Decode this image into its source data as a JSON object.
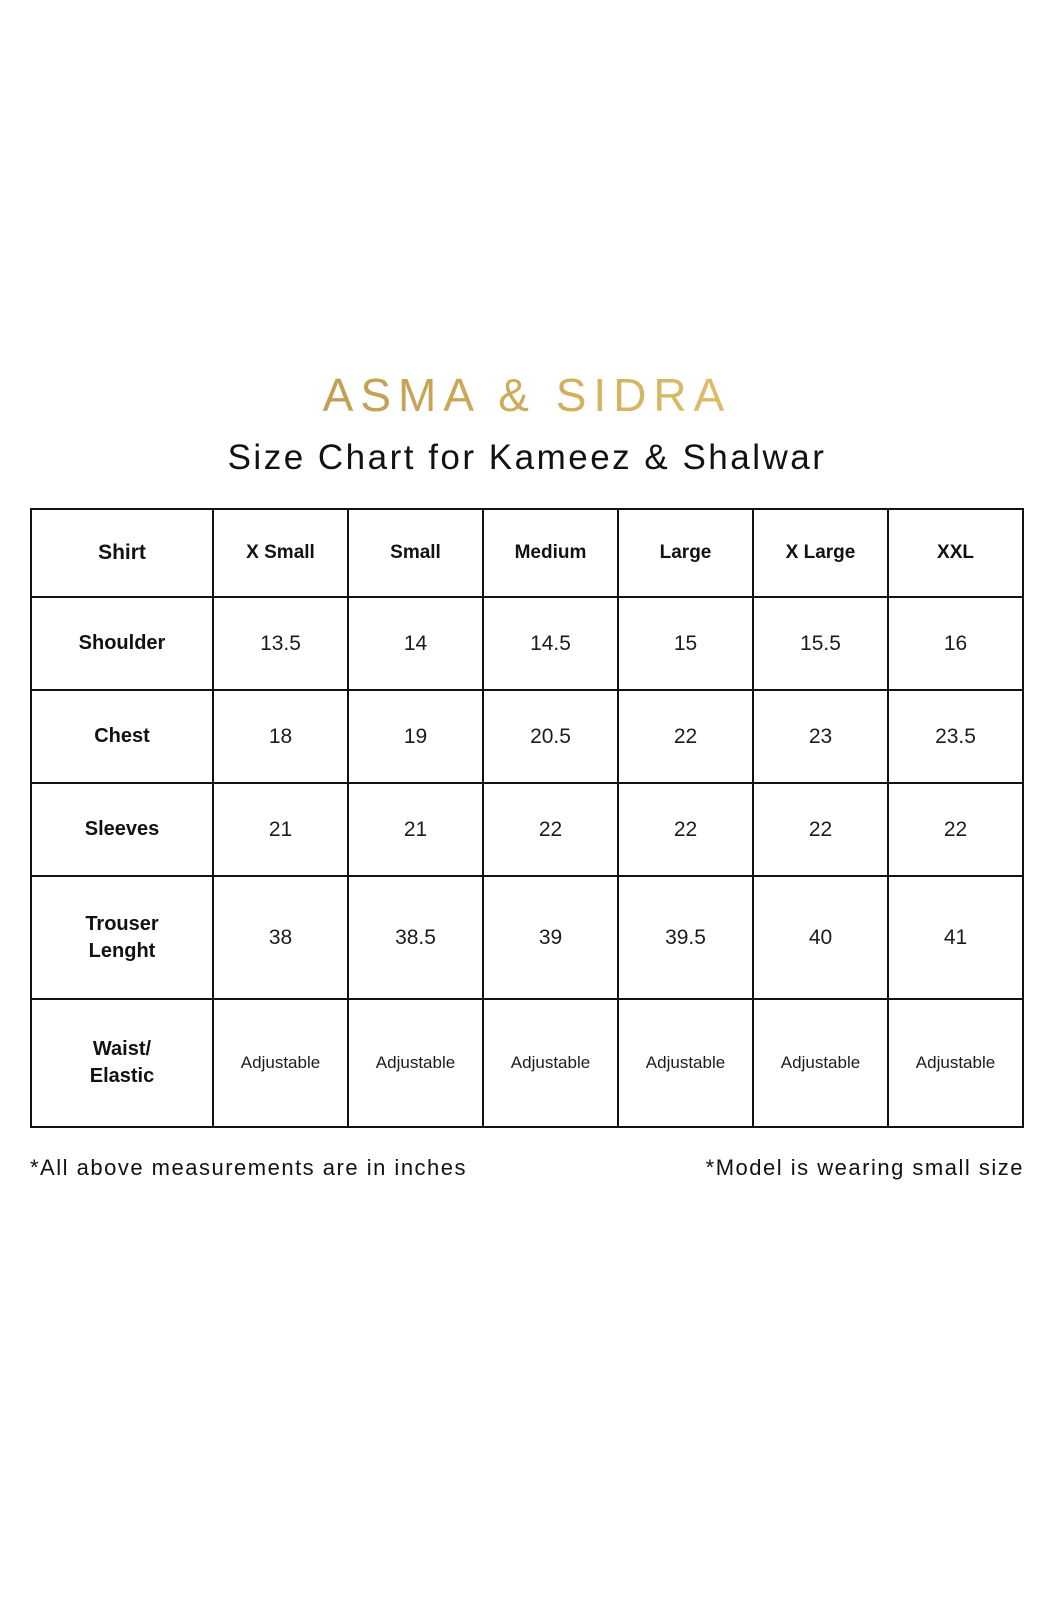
{
  "brand": {
    "logo_text": "ASMA & SIDRA",
    "logo_gradient_start": "#ad8a45",
    "logo_gradient_end": "#eed998"
  },
  "title": "Size Chart for Kameez & Shalwar",
  "chart_data": {
    "type": "table",
    "title": "Size Chart for Kameez & Shalwar",
    "header": {
      "label": "Shirt",
      "columns": [
        "X Small",
        "Small",
        "Medium",
        "Large",
        "X Large",
        "XXL"
      ]
    },
    "rows": [
      {
        "label": "Shoulder",
        "values": [
          "13.5",
          "14",
          "14.5",
          "15",
          "15.5",
          "16"
        ]
      },
      {
        "label": "Chest",
        "values": [
          "18",
          "19",
          "20.5",
          "22",
          "23",
          "23.5"
        ]
      },
      {
        "label": "Sleeves",
        "values": [
          "21",
          "21",
          "22",
          "22",
          "22",
          "22"
        ]
      },
      {
        "label": "Trouser\nLenght",
        "values": [
          "38",
          "38.5",
          "39",
          "39.5",
          "40",
          "41"
        ]
      },
      {
        "label": "Waist/\nElastic",
        "values": [
          "Adjustable",
          "Adjustable",
          "Adjustable",
          "Adjustable",
          "Adjustable",
          "Adjustable"
        ]
      }
    ]
  },
  "footnotes": {
    "left": "*All above measurements are in inches",
    "right": "*Model is wearing small size"
  }
}
